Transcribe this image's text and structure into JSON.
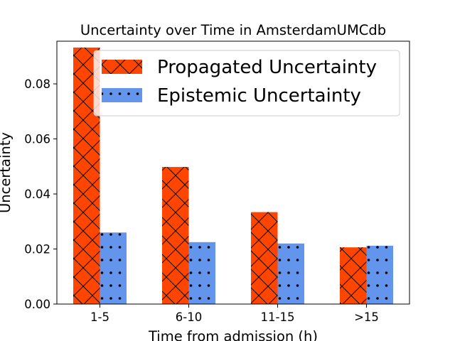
{
  "chart_data": {
    "type": "bar",
    "title": "Uncertainty over Time in AmsterdamUMCdb",
    "xlabel": "Time from admission (h)",
    "ylabel": "Uncertainty",
    "categories": [
      "1-5",
      "6-10",
      "11-15",
      ">15"
    ],
    "series": [
      {
        "name": "Propagated Uncertainty",
        "values": [
          0.0932,
          0.0498,
          0.0334,
          0.0206
        ],
        "color": "#ff4500",
        "hatch": "cross"
      },
      {
        "name": "Epistemic Uncertainty",
        "values": [
          0.026,
          0.0225,
          0.022,
          0.0212
        ],
        "color": "#6495ed",
        "hatch": "dots"
      }
    ],
    "ylim": [
      0,
      0.0955
    ],
    "yticks": [
      "0.00",
      "0.02",
      "0.04",
      "0.06",
      "0.08"
    ],
    "legend": "top-right",
    "grid": false
  }
}
